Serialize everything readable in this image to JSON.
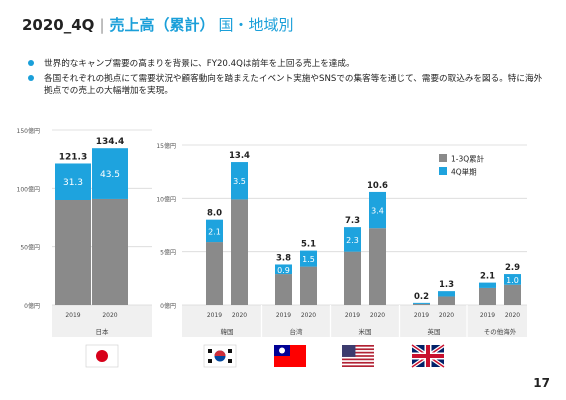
{
  "header": {
    "period": "2020_4Q",
    "separator": "|",
    "title": "売上高（累計）",
    "subtitle": "国・地域別"
  },
  "bullets": [
    "世界的なキャンプ需要の高まりを背景に、FY20.4Qは前年を上回る売上を達成。",
    "各国それぞれの拠点にて需要状況や顧客動向を踏まえたイベント実施やSNSでの集客等を通じて、需要の取込みを図る。特に海外拠点での売上の大幅増加を実現。"
  ],
  "page_number": "17",
  "colors": {
    "q13": "#8a8a8a",
    "q4": "#1ea3de",
    "accent": "#1a9fd9",
    "grid": "#d9d9d9",
    "label_band": "#f0f0f0"
  },
  "chart_data": [
    {
      "type": "bar",
      "stacked": true,
      "region": "日本",
      "categories": [
        "2019",
        "2020"
      ],
      "series": [
        {
          "name": "1-3Q累計",
          "values": [
            90.0,
            90.9
          ]
        },
        {
          "name": "4Q単期",
          "values": [
            31.3,
            43.5
          ]
        }
      ],
      "totals": [
        121.3,
        134.4
      ],
      "ylim": [
        0,
        150
      ],
      "yticks": [
        "0億円",
        "50億円",
        "100億円",
        "150億円"
      ]
    },
    {
      "type": "bar",
      "stacked": true,
      "groups": [
        "韓国",
        "台湾",
        "米国",
        "英国",
        "その他海外"
      ],
      "categories": [
        "2019",
        "2020"
      ],
      "series": [
        {
          "name": "1-3Q累計",
          "values": [
            [
              5.9,
              9.9
            ],
            [
              2.9,
              3.6
            ],
            [
              5.0,
              7.2
            ],
            [
              0.1,
              0.8
            ],
            [
              1.6,
              1.9
            ]
          ]
        },
        {
          "name": "4Q単期",
          "values": [
            [
              2.1,
              3.5
            ],
            [
              0.9,
              1.5
            ],
            [
              2.3,
              3.4
            ],
            [
              0.1,
              0.5
            ],
            [
              0.5,
              1.0
            ]
          ]
        }
      ],
      "totals": [
        [
          8.0,
          13.4
        ],
        [
          3.8,
          5.1
        ],
        [
          7.3,
          10.6
        ],
        [
          0.2,
          1.3
        ],
        [
          2.1,
          2.9
        ]
      ],
      "ylim": [
        0,
        15
      ],
      "yticks": [
        "0億円",
        "5億円",
        "10億円",
        "15億円"
      ],
      "legend": {
        "entries": [
          "1-3Q累計",
          "4Q単期"
        ],
        "placement": "top-right"
      }
    }
  ],
  "flags": [
    {
      "region": "日本",
      "icon": "japan-flag-icon"
    },
    {
      "region": "韓国",
      "icon": "south-korea-flag-icon"
    },
    {
      "region": "台湾",
      "icon": "taiwan-flag-icon"
    },
    {
      "region": "米国",
      "icon": "usa-flag-icon"
    },
    {
      "region": "英国",
      "icon": "uk-flag-icon"
    }
  ]
}
